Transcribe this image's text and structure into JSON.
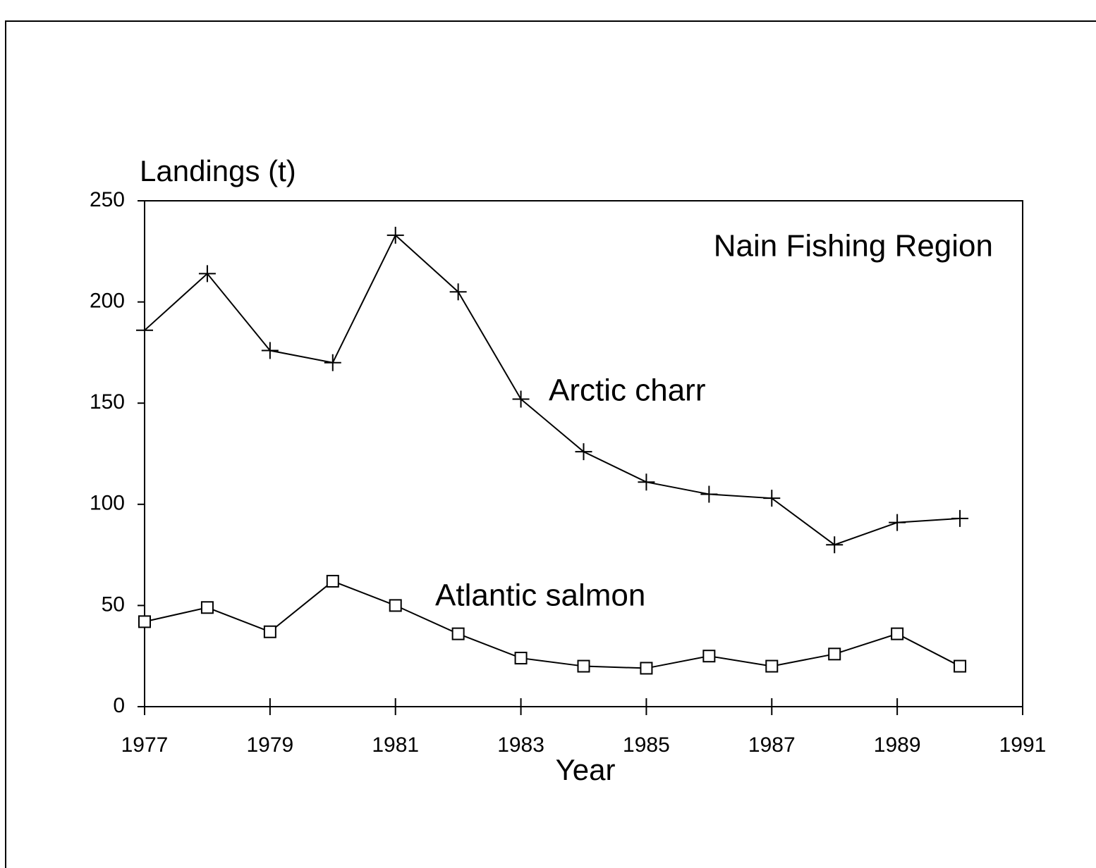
{
  "chart_data": {
    "type": "line",
    "title": "Nain Fishing Region",
    "ylabel": "Landings (t)",
    "xlabel": "Year",
    "x": [
      1977,
      1978,
      1979,
      1980,
      1981,
      1982,
      1983,
      1984,
      1985,
      1986,
      1987,
      1988,
      1989,
      1990
    ],
    "series": [
      {
        "name": "Arctic charr",
        "color": "#000000",
        "marker": "plus",
        "values": [
          186,
          214,
          176,
          170,
          233,
          205,
          152,
          126,
          111,
          105,
          103,
          80,
          91,
          93
        ]
      },
      {
        "name": "Atlantic salmon",
        "color": "#000000",
        "marker": "square",
        "values": [
          42,
          49,
          37,
          62,
          50,
          36,
          24,
          20,
          19,
          25,
          20,
          26,
          36,
          20
        ]
      }
    ],
    "xlim": [
      1977,
      1991
    ],
    "xticks": [
      1977,
      1979,
      1981,
      1983,
      1985,
      1987,
      1989,
      1991
    ],
    "ylim": [
      0,
      250
    ],
    "yticks": [
      0,
      50,
      100,
      150,
      200,
      250
    ],
    "grid": false
  }
}
